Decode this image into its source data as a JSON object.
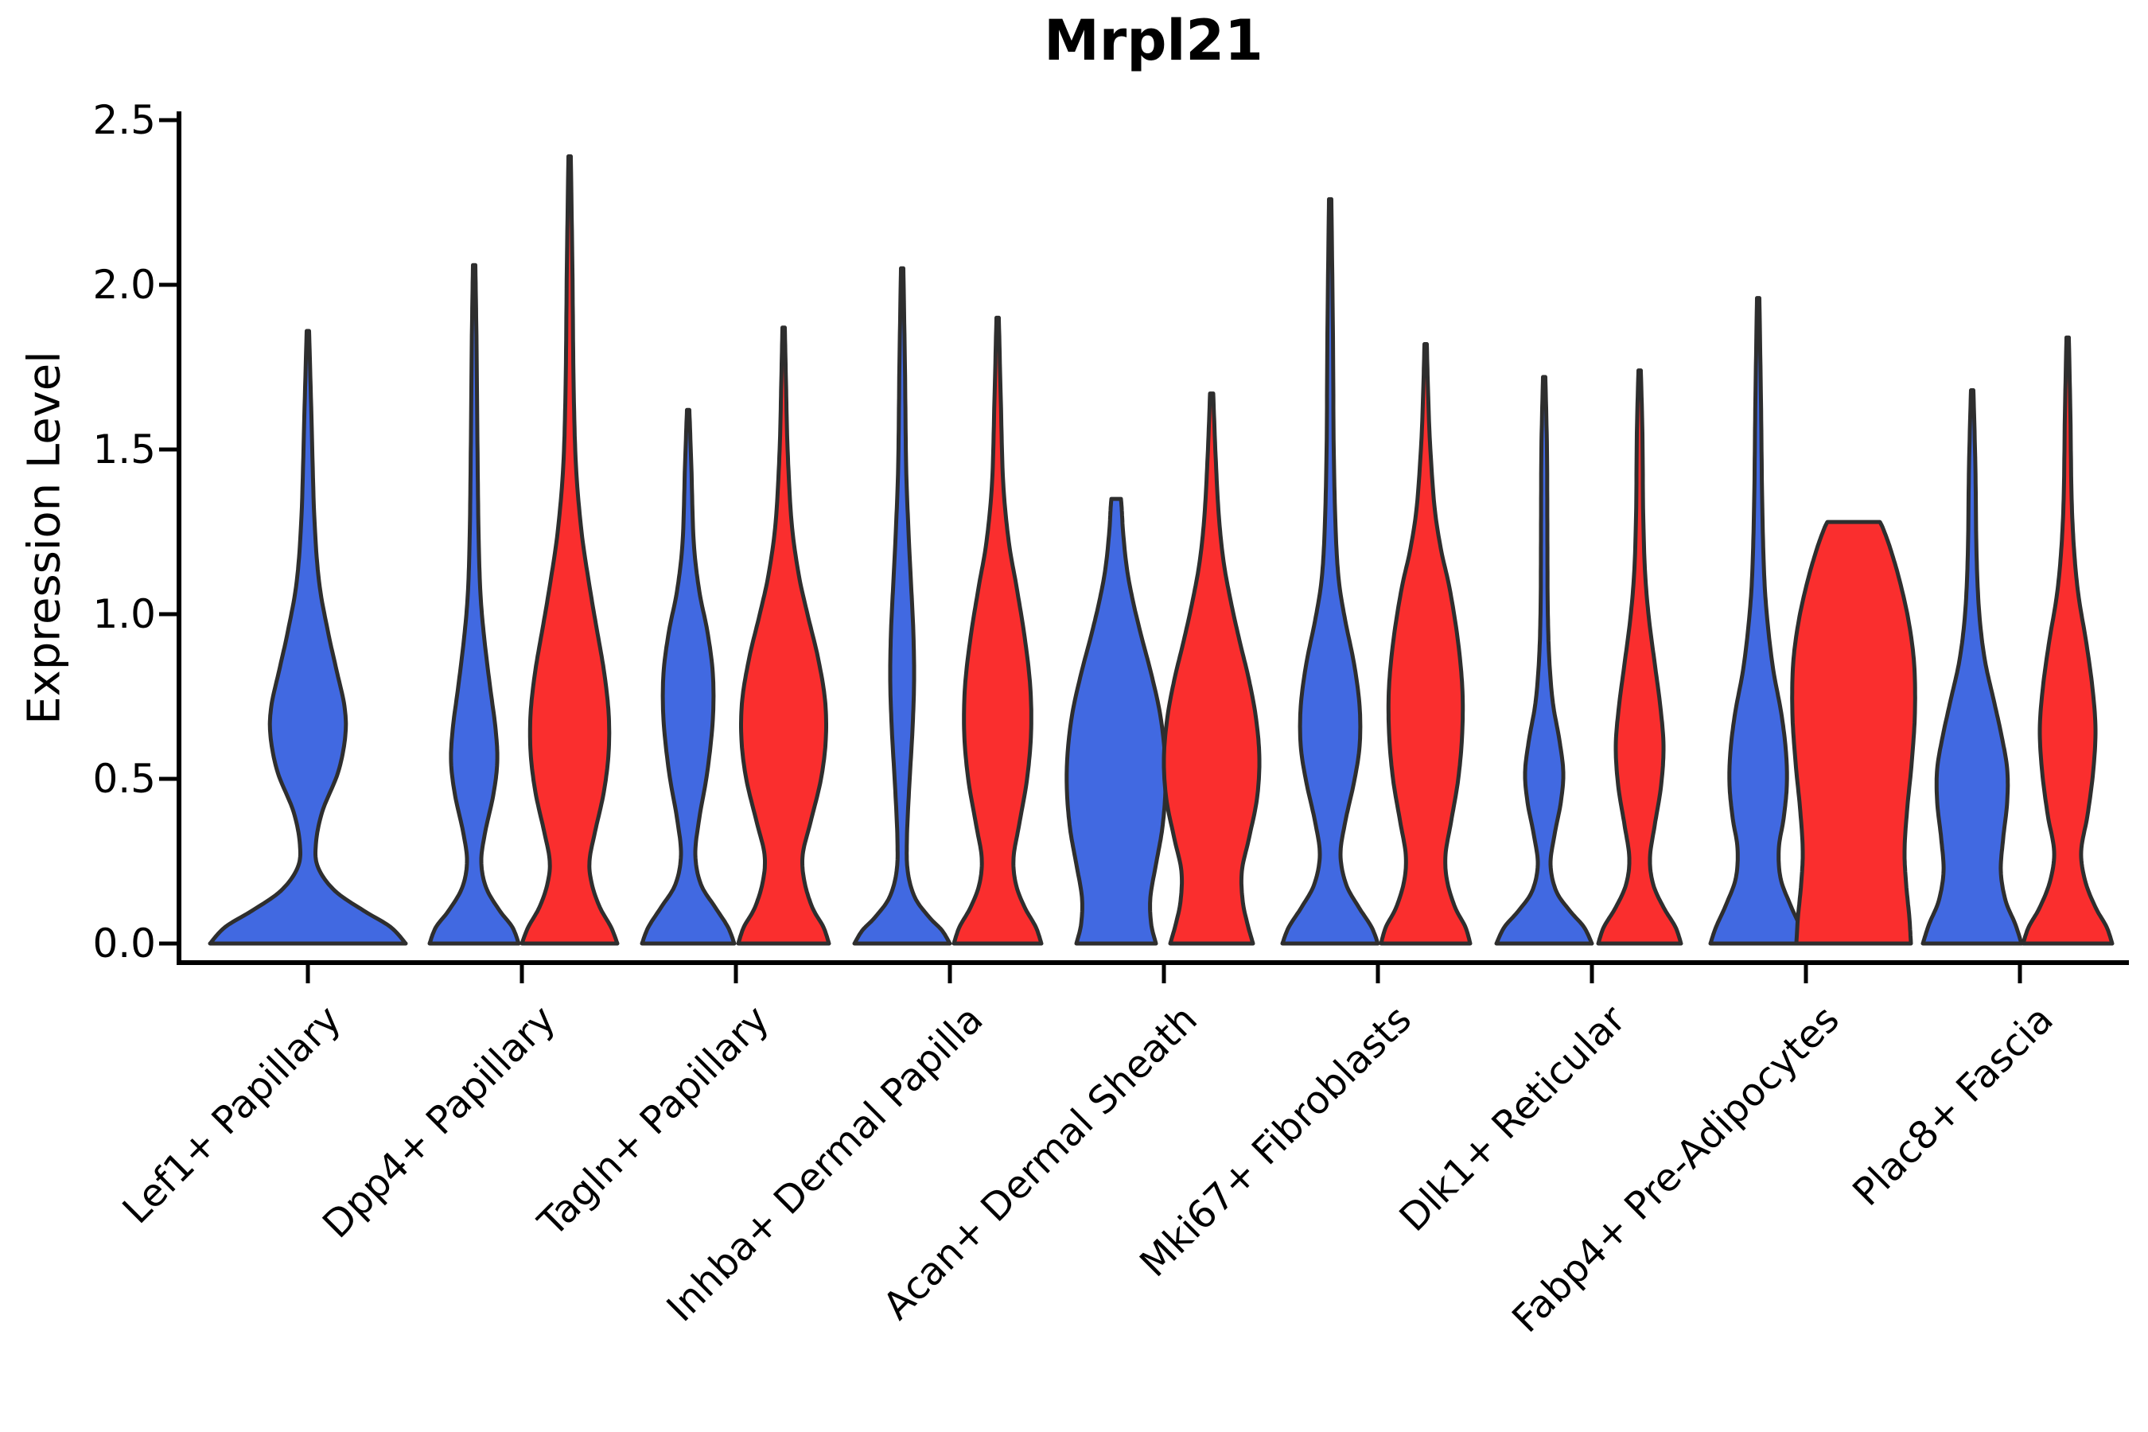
{
  "title": "Mrpl21",
  "colors": {
    "blue": "#4169E1",
    "red": "#FA2E2E",
    "violin_stroke": "#2E2E2E",
    "axis": "#000000",
    "text": "#000000",
    "background": "#FFFFFF"
  },
  "chart_data": {
    "type": "violin",
    "title": "Mrpl21",
    "xlabel": "",
    "ylabel": "Expression Level",
    "ylim": [
      0,
      2.5
    ],
    "yticks": [
      "0.0",
      "0.5",
      "1.0",
      "1.5",
      "2.0",
      "2.5"
    ],
    "ytick_values": [
      0.0,
      0.5,
      1.0,
      1.5,
      2.0,
      2.5
    ],
    "grid": false,
    "legend_position": "none",
    "x_labels_rotation_deg": 45,
    "categories": [
      "Lef1+ Papillary",
      "Dpp4+ Papillary",
      "Tagln+ Papillary",
      "Inhba+ Dermal Papilla",
      "Acan+ Dermal Sheath",
      "Mki67+ Fibroblasts",
      "Dlk1+ Reticular",
      "Fabp4+ Pre-Adipocytes",
      "Plac8+ Fascia"
    ],
    "series": [
      "blue",
      "red"
    ],
    "violins": [
      {
        "category": "Lef1+ Papillary",
        "series": "blue",
        "color": "#4169E1",
        "cx": 387,
        "max": 1.86,
        "profile": [
          [
            0,
            123
          ],
          [
            0.05,
            104
          ],
          [
            0.1,
            70
          ],
          [
            0.16,
            34
          ],
          [
            0.23,
            13
          ],
          [
            0.3,
            10
          ],
          [
            0.4,
            18
          ],
          [
            0.52,
            38
          ],
          [
            0.63,
            47
          ],
          [
            0.72,
            46
          ],
          [
            0.83,
            36
          ],
          [
            0.95,
            25
          ],
          [
            1.1,
            14
          ],
          [
            1.3,
            8
          ],
          [
            1.6,
            4.5
          ],
          [
            1.86,
            1.5
          ]
        ]
      },
      {
        "category": "Dpp4+ Papillary",
        "series": "blue",
        "color": "#4169E1",
        "cx": 596,
        "max": 2.06,
        "profile": [
          [
            0,
            56
          ],
          [
            0.05,
            48
          ],
          [
            0.1,
            32
          ],
          [
            0.17,
            15
          ],
          [
            0.25,
            9
          ],
          [
            0.34,
            14
          ],
          [
            0.45,
            24
          ],
          [
            0.55,
            29
          ],
          [
            0.65,
            27
          ],
          [
            0.78,
            20
          ],
          [
            0.92,
            13
          ],
          [
            1.06,
            8
          ],
          [
            1.25,
            5.5
          ],
          [
            1.55,
            4
          ],
          [
            1.82,
            3
          ],
          [
            2.06,
            1.5
          ]
        ]
      },
      {
        "category": "Dpp4+ Papillary",
        "series": "red",
        "color": "#FA2E2E",
        "cx": 716,
        "max": 2.39,
        "profile": [
          [
            0,
            60
          ],
          [
            0.05,
            52
          ],
          [
            0.11,
            38
          ],
          [
            0.18,
            28
          ],
          [
            0.25,
            25
          ],
          [
            0.34,
            32
          ],
          [
            0.46,
            43
          ],
          [
            0.58,
            49
          ],
          [
            0.7,
            49
          ],
          [
            0.83,
            43
          ],
          [
            0.97,
            33
          ],
          [
            1.1,
            24
          ],
          [
            1.25,
            15
          ],
          [
            1.45,
            8
          ],
          [
            1.7,
            5
          ],
          [
            2.05,
            3.5
          ],
          [
            2.39,
            1.5
          ]
        ]
      },
      {
        "category": "Tagln+ Papillary",
        "series": "blue",
        "color": "#4169E1",
        "cx": 865,
        "max": 1.62,
        "profile": [
          [
            0,
            58
          ],
          [
            0.05,
            50
          ],
          [
            0.11,
            34
          ],
          [
            0.18,
            16
          ],
          [
            0.27,
            9
          ],
          [
            0.38,
            14
          ],
          [
            0.52,
            24
          ],
          [
            0.68,
            31
          ],
          [
            0.82,
            31
          ],
          [
            0.95,
            24
          ],
          [
            1.07,
            14
          ],
          [
            1.22,
            7
          ],
          [
            1.45,
            4
          ],
          [
            1.62,
            1.5
          ]
        ]
      },
      {
        "category": "Tagln+ Papillary",
        "series": "red",
        "color": "#FA2E2E",
        "cx": 985,
        "max": 1.87,
        "profile": [
          [
            0,
            57
          ],
          [
            0.05,
            50
          ],
          [
            0.11,
            36
          ],
          [
            0.19,
            26
          ],
          [
            0.27,
            24
          ],
          [
            0.37,
            34
          ],
          [
            0.5,
            47
          ],
          [
            0.62,
            53
          ],
          [
            0.74,
            52
          ],
          [
            0.87,
            43
          ],
          [
            1.0,
            30
          ],
          [
            1.12,
            19
          ],
          [
            1.28,
            10
          ],
          [
            1.5,
            5
          ],
          [
            1.7,
            3
          ],
          [
            1.87,
            1.5
          ]
        ]
      },
      {
        "category": "Inhba+ Dermal Papilla",
        "series": "blue",
        "color": "#4169E1",
        "cx": 1134,
        "max": 2.05,
        "profile": [
          [
            0,
            60
          ],
          [
            0.04,
            50
          ],
          [
            0.08,
            34
          ],
          [
            0.14,
            16
          ],
          [
            0.22,
            7
          ],
          [
            0.32,
            6
          ],
          [
            0.48,
            9
          ],
          [
            0.65,
            13
          ],
          [
            0.8,
            15
          ],
          [
            0.95,
            14
          ],
          [
            1.1,
            11
          ],
          [
            1.25,
            8
          ],
          [
            1.45,
            5
          ],
          [
            1.75,
            3.5
          ],
          [
            2.05,
            1.5
          ]
        ]
      },
      {
        "category": "Inhba+ Dermal Papilla",
        "series": "red",
        "color": "#FA2E2E",
        "cx": 1254,
        "max": 1.9,
        "profile": [
          [
            0,
            55
          ],
          [
            0.05,
            48
          ],
          [
            0.11,
            34
          ],
          [
            0.18,
            23
          ],
          [
            0.26,
            20
          ],
          [
            0.36,
            27
          ],
          [
            0.5,
            37
          ],
          [
            0.64,
            42
          ],
          [
            0.78,
            41
          ],
          [
            0.93,
            34
          ],
          [
            1.08,
            24
          ],
          [
            1.22,
            14
          ],
          [
            1.4,
            7
          ],
          [
            1.65,
            4
          ],
          [
            1.9,
            1.5
          ]
        ]
      },
      {
        "category": "Acan+ Dermal Sheath",
        "series": "blue",
        "color": "#4169E1",
        "cx": 1403,
        "max": 1.35,
        "profile": [
          [
            0,
            50
          ],
          [
            0.06,
            44
          ],
          [
            0.14,
            43
          ],
          [
            0.24,
            50
          ],
          [
            0.35,
            58
          ],
          [
            0.47,
            62
          ],
          [
            0.58,
            61
          ],
          [
            0.7,
            55
          ],
          [
            0.82,
            44
          ],
          [
            0.93,
            32
          ],
          [
            1.03,
            22
          ],
          [
            1.13,
            14
          ],
          [
            1.24,
            9
          ],
          [
            1.32,
            7
          ],
          [
            1.35,
            6
          ]
        ]
      },
      {
        "category": "Acan+ Dermal Sheath",
        "series": "red",
        "color": "#FA2E2E",
        "cx": 1523,
        "max": 1.67,
        "profile": [
          [
            0,
            52
          ],
          [
            0.06,
            45
          ],
          [
            0.13,
            39
          ],
          [
            0.22,
            38
          ],
          [
            0.32,
            47
          ],
          [
            0.44,
            57
          ],
          [
            0.56,
            60
          ],
          [
            0.68,
            56
          ],
          [
            0.8,
            47
          ],
          [
            0.92,
            35
          ],
          [
            1.04,
            24
          ],
          [
            1.16,
            15
          ],
          [
            1.3,
            9
          ],
          [
            1.48,
            5
          ],
          [
            1.67,
            2
          ]
        ]
      },
      {
        "category": "Mki67+ Fibroblasts",
        "series": "blue",
        "color": "#4169E1",
        "cx": 1672,
        "max": 2.26,
        "profile": [
          [
            0,
            60
          ],
          [
            0.05,
            52
          ],
          [
            0.11,
            36
          ],
          [
            0.18,
            20
          ],
          [
            0.27,
            13
          ],
          [
            0.37,
            19
          ],
          [
            0.49,
            30
          ],
          [
            0.6,
            37
          ],
          [
            0.72,
            37
          ],
          [
            0.85,
            30
          ],
          [
            0.98,
            19
          ],
          [
            1.1,
            11
          ],
          [
            1.25,
            7
          ],
          [
            1.5,
            4.5
          ],
          [
            1.85,
            3.5
          ],
          [
            2.26,
            1.5
          ]
        ]
      },
      {
        "category": "Mki67+ Fibroblasts",
        "series": "red",
        "color": "#FA2E2E",
        "cx": 1792,
        "max": 1.82,
        "profile": [
          [
            0,
            56
          ],
          [
            0.05,
            50
          ],
          [
            0.11,
            37
          ],
          [
            0.19,
            27
          ],
          [
            0.27,
            25
          ],
          [
            0.37,
            32
          ],
          [
            0.5,
            41
          ],
          [
            0.64,
            46
          ],
          [
            0.78,
            46
          ],
          [
            0.93,
            40
          ],
          [
            1.08,
            30
          ],
          [
            1.2,
            19
          ],
          [
            1.33,
            11
          ],
          [
            1.52,
            5.5
          ],
          [
            1.68,
            3
          ],
          [
            1.82,
            1.5
          ]
        ]
      },
      {
        "category": "Dlk1+ Reticular",
        "series": "blue",
        "color": "#4169E1",
        "cx": 1941,
        "max": 1.72,
        "profile": [
          [
            0,
            60
          ],
          [
            0.05,
            50
          ],
          [
            0.1,
            32
          ],
          [
            0.16,
            15
          ],
          [
            0.24,
            8
          ],
          [
            0.33,
            13
          ],
          [
            0.43,
            21
          ],
          [
            0.52,
            24
          ],
          [
            0.62,
            19
          ],
          [
            0.73,
            11
          ],
          [
            0.86,
            6.5
          ],
          [
            1.02,
            4.5
          ],
          [
            1.25,
            4
          ],
          [
            1.5,
            3.5
          ],
          [
            1.72,
            1.5
          ]
        ]
      },
      {
        "category": "Dlk1+ Reticular",
        "series": "red",
        "color": "#FA2E2E",
        "cx": 2061,
        "max": 1.74,
        "profile": [
          [
            0,
            52
          ],
          [
            0.05,
            45
          ],
          [
            0.11,
            30
          ],
          [
            0.18,
            17
          ],
          [
            0.26,
            13
          ],
          [
            0.36,
            19
          ],
          [
            0.48,
            27
          ],
          [
            0.6,
            30
          ],
          [
            0.72,
            26
          ],
          [
            0.85,
            19
          ],
          [
            0.98,
            12
          ],
          [
            1.12,
            7
          ],
          [
            1.3,
            4.5
          ],
          [
            1.55,
            3.5
          ],
          [
            1.74,
            1.5
          ]
        ]
      },
      {
        "category": "Fabp4+ Pre-Adipocytes",
        "series": "blue",
        "color": "#4169E1",
        "cx": 2210,
        "max": 1.96,
        "profile": [
          [
            0,
            60
          ],
          [
            0.05,
            53
          ],
          [
            0.12,
            40
          ],
          [
            0.2,
            28
          ],
          [
            0.29,
            26
          ],
          [
            0.38,
            32
          ],
          [
            0.48,
            36
          ],
          [
            0.58,
            35
          ],
          [
            0.7,
            29
          ],
          [
            0.83,
            19
          ],
          [
            0.97,
            12
          ],
          [
            1.12,
            7.5
          ],
          [
            1.35,
            5
          ],
          [
            1.65,
            3.5
          ],
          [
            1.96,
            1.5
          ]
        ]
      },
      {
        "category": "Fabp4+ Pre-Adipocytes",
        "series": "red",
        "color": "#FA2E2E",
        "cx": 2330,
        "max": 1.28,
        "flat_top": true,
        "profile": [
          [
            0,
            72
          ],
          [
            0.08,
            70
          ],
          [
            0.18,
            66
          ],
          [
            0.28,
            64
          ],
          [
            0.4,
            67
          ],
          [
            0.55,
            73
          ],
          [
            0.7,
            77
          ],
          [
            0.85,
            76
          ],
          [
            0.98,
            69
          ],
          [
            1.1,
            58
          ],
          [
            1.2,
            46
          ],
          [
            1.26,
            37
          ],
          [
            1.28,
            33
          ]
        ]
      },
      {
        "category": "Plac8+ Fascia",
        "series": "blue",
        "color": "#4169E1",
        "cx": 2479,
        "max": 1.68,
        "profile": [
          [
            0,
            62
          ],
          [
            0.06,
            54
          ],
          [
            0.13,
            42
          ],
          [
            0.22,
            36
          ],
          [
            0.32,
            39
          ],
          [
            0.43,
            44
          ],
          [
            0.53,
            44
          ],
          [
            0.63,
            37
          ],
          [
            0.74,
            27
          ],
          [
            0.86,
            16
          ],
          [
            1.0,
            9
          ],
          [
            1.18,
            5.5
          ],
          [
            1.45,
            4
          ],
          [
            1.68,
            1.5
          ]
        ]
      },
      {
        "category": "Plac8+ Fascia",
        "series": "red",
        "color": "#FA2E2E",
        "cx": 2599,
        "max": 1.84,
        "profile": [
          [
            0,
            56
          ],
          [
            0.05,
            49
          ],
          [
            0.11,
            35
          ],
          [
            0.19,
            22
          ],
          [
            0.28,
            17
          ],
          [
            0.39,
            25
          ],
          [
            0.52,
            32
          ],
          [
            0.65,
            35
          ],
          [
            0.78,
            31
          ],
          [
            0.92,
            23
          ],
          [
            1.05,
            14
          ],
          [
            1.18,
            8.5
          ],
          [
            1.35,
            5
          ],
          [
            1.6,
            3.5
          ],
          [
            1.84,
            1.5
          ]
        ]
      }
    ]
  }
}
